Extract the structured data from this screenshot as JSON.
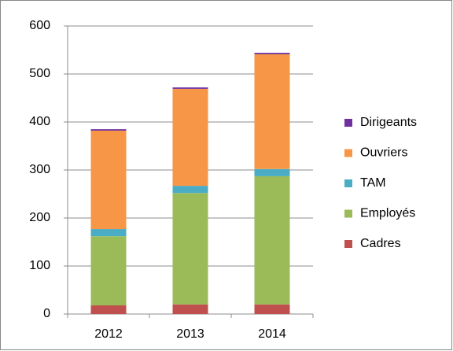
{
  "chart_data": {
    "type": "stacked_bar",
    "categories": [
      "2012",
      "2013",
      "2014"
    ],
    "series": [
      {
        "name": "Cadres",
        "color": "#c0504d",
        "values": [
          18,
          20,
          20
        ]
      },
      {
        "name": "Employés",
        "color": "#9bbb59",
        "values": [
          144,
          232,
          267
        ]
      },
      {
        "name": "TAM",
        "color": "#4bacc6",
        "values": [
          15,
          15,
          15
        ]
      },
      {
        "name": "Ouvriers",
        "color": "#f79646",
        "values": [
          205,
          202,
          239
        ]
      },
      {
        "name": "Dirigeants",
        "color": "#7030a0",
        "values": [
          3,
          3,
          3
        ]
      }
    ],
    "ylim": [
      0,
      600
    ],
    "yticks": [
      0,
      100,
      200,
      300,
      400,
      500,
      600
    ],
    "grid": true,
    "legend": "right"
  }
}
